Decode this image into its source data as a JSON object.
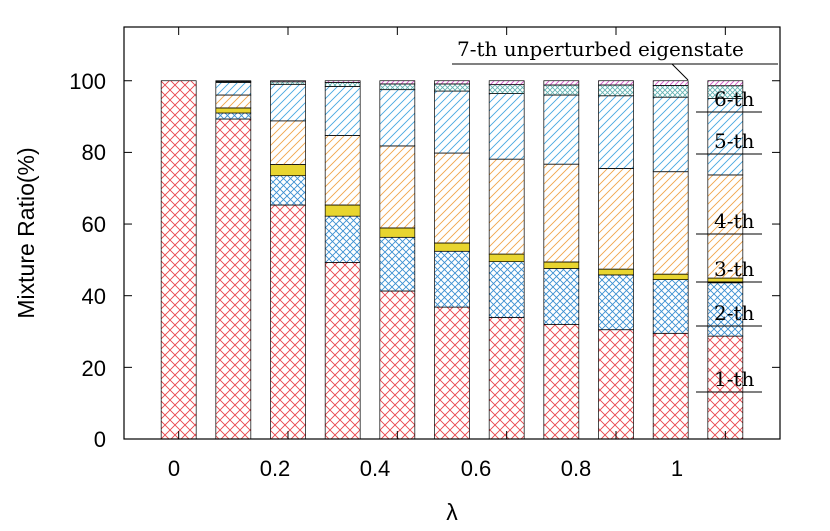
{
  "chart_data": {
    "type": "bar",
    "stacked": true,
    "x_ticks": [
      "0",
      "0.2",
      "0.4",
      "0.6",
      "0.8",
      "1"
    ],
    "y_ticks": [
      "0",
      "20",
      "40",
      "60",
      "80",
      "100"
    ],
    "xlabel": "λ",
    "ylabel": "Mixture Ratio(%)",
    "xlim": [
      -0.1,
      1.1
    ],
    "ylim": [
      0,
      115
    ],
    "grid": false,
    "x": [
      0,
      0.1,
      0.2,
      0.3,
      0.4,
      0.5,
      0.6,
      0.7,
      0.8,
      0.9,
      1.0
    ],
    "series": [
      {
        "name": "1-th",
        "color": "#e8454b",
        "pattern": "crosshatch",
        "values": [
          100,
          89.3,
          65.3,
          49.3,
          41.3,
          36.8,
          33.9,
          32.0,
          30.5,
          29.5,
          28.7
        ]
      },
      {
        "name": "2-th",
        "color": "#3b8fd1",
        "pattern": "crosshatch",
        "values": [
          0,
          1.7,
          8.2,
          12.9,
          15.0,
          15.6,
          15.6,
          15.6,
          15.3,
          15.0,
          14.9
        ]
      },
      {
        "name": "3-th",
        "color": "#e8d530",
        "pattern": "solid",
        "values": [
          0,
          1.4,
          3.1,
          3.1,
          2.6,
          2.3,
          2.1,
          1.8,
          1.6,
          1.5,
          1.3
        ]
      },
      {
        "name": "4-th",
        "color": "#f0a54a",
        "pattern": "diagonal",
        "values": [
          0,
          3.6,
          12.2,
          19.4,
          22.9,
          25.1,
          26.5,
          27.3,
          28.1,
          28.6,
          28.8
        ]
      },
      {
        "name": "5-th",
        "color": "#47a7e0",
        "pattern": "diagonal",
        "values": [
          0,
          3.5,
          10.2,
          13.7,
          15.7,
          17.3,
          18.3,
          19.3,
          20.3,
          20.8,
          21.3
        ]
      },
      {
        "name": "6-th",
        "color": "#5fb0b0",
        "pattern": "crosshatch-fine",
        "values": [
          0,
          0.3,
          0.7,
          1.1,
          1.6,
          2.0,
          2.5,
          2.8,
          3.0,
          3.3,
          3.6
        ]
      },
      {
        "name": "7-th unperturbed eigenstate",
        "color": "#d04fc4",
        "pattern": "diagonal",
        "values": [
          0,
          0.2,
          0.3,
          0.5,
          0.9,
          0.9,
          1.1,
          1.2,
          1.2,
          1.3,
          1.4
        ]
      }
    ]
  }
}
